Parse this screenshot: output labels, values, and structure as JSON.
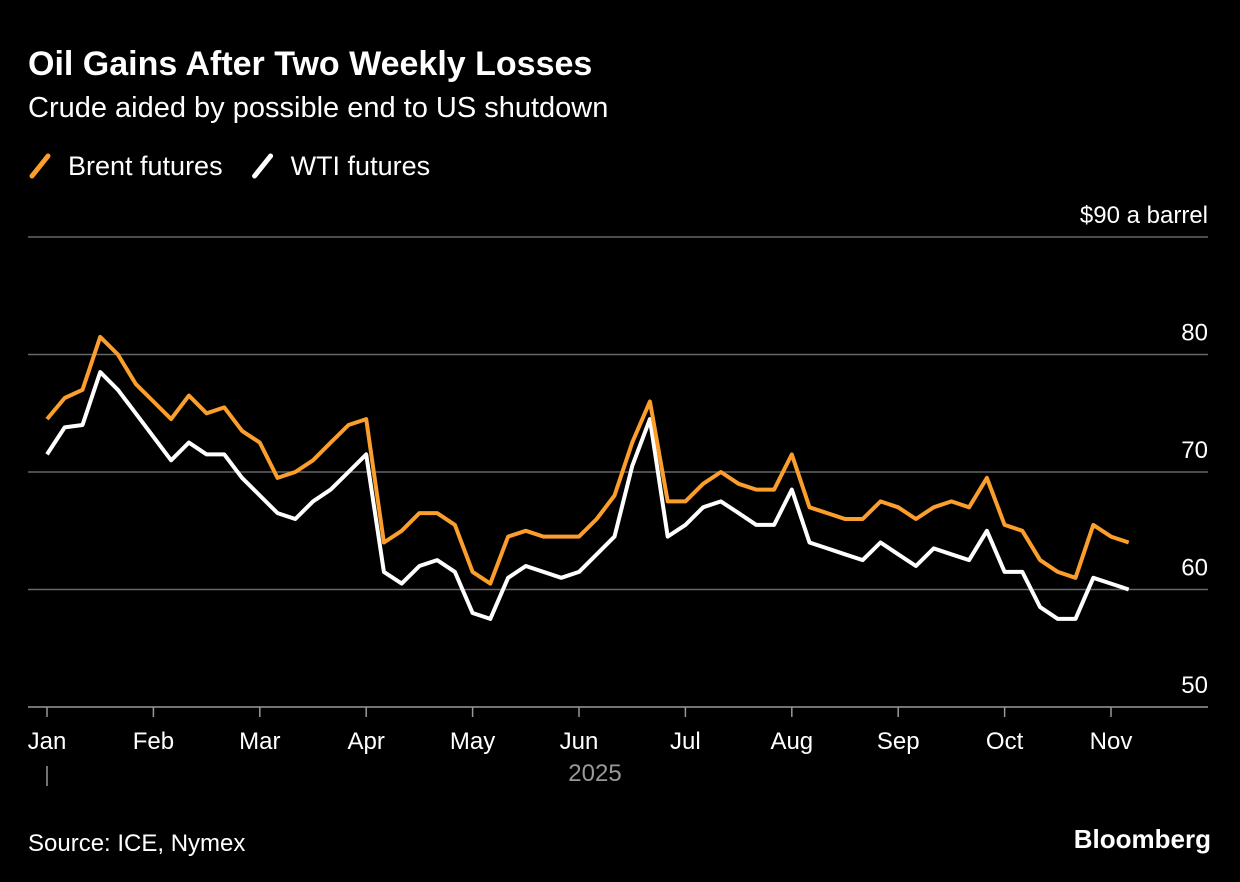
{
  "chart_data": {
    "type": "line",
    "title": "Oil Gains After Two Weekly Losses",
    "subtitle": "Crude aided by possible end to US shutdown",
    "x_label": "2025",
    "source": "Source: ICE, Nymex",
    "brand": "Bloomberg",
    "categories": [
      "Jan",
      null,
      null,
      null,
      null,
      null,
      "Feb",
      null,
      null,
      null,
      null,
      null,
      "Mar",
      null,
      null,
      null,
      null,
      null,
      "Apr",
      null,
      null,
      null,
      null,
      null,
      "May",
      null,
      null,
      null,
      null,
      null,
      "Jun",
      null,
      null,
      null,
      null,
      null,
      "Jul",
      null,
      null,
      null,
      null,
      null,
      "Aug",
      null,
      null,
      null,
      null,
      null,
      "Sep",
      null,
      null,
      null,
      null,
      null,
      "Oct",
      null,
      null,
      null,
      null,
      null,
      "Nov",
      null
    ],
    "series": [
      {
        "name": "Brent futures",
        "color": "#fb9e2c",
        "values": [
          74.5,
          76.3,
          77,
          81.5,
          80,
          77.5,
          76,
          74.5,
          76.5,
          75,
          75.5,
          73.5,
          72.5,
          69.5,
          70,
          71,
          72.5,
          74,
          74.5,
          64,
          65,
          66.5,
          66.5,
          65.5,
          61.5,
          60.5,
          64.5,
          65,
          64.5,
          64.5,
          64.5,
          66,
          68,
          72.5,
          76,
          67.5,
          67.5,
          69,
          70,
          69,
          68.5,
          68.5,
          71.5,
          67,
          66.5,
          66,
          66,
          67.5,
          67,
          66,
          67,
          67.5,
          67,
          69.5,
          65.5,
          65,
          62.5,
          61.5,
          61,
          65.5,
          64.5,
          64
        ]
      },
      {
        "name": "WTI futures",
        "color": "#ffffff",
        "values": [
          71.5,
          73.8,
          74,
          78.5,
          77,
          75,
          73,
          71,
          72.5,
          71.5,
          71.5,
          69.5,
          68,
          66.5,
          66,
          67.5,
          68.5,
          70,
          71.5,
          61.5,
          60.5,
          62,
          62.5,
          61.5,
          58,
          57.5,
          61,
          62,
          61.5,
          61,
          61.5,
          63,
          64.5,
          70.5,
          74.5,
          64.5,
          65.5,
          67,
          67.5,
          66.5,
          65.5,
          65.5,
          68.5,
          64,
          63.5,
          63,
          62.5,
          64,
          63,
          62,
          63.5,
          63,
          62.5,
          65,
          61.5,
          61.5,
          58.5,
          57.5,
          57.5,
          61,
          60.5,
          60
        ]
      }
    ],
    "ylim": [
      50,
      90
    ],
    "yticks": [
      50,
      60,
      70,
      80,
      {
        "value": 90,
        "label": "$90 a barrel"
      }
    ],
    "grid": true
  }
}
